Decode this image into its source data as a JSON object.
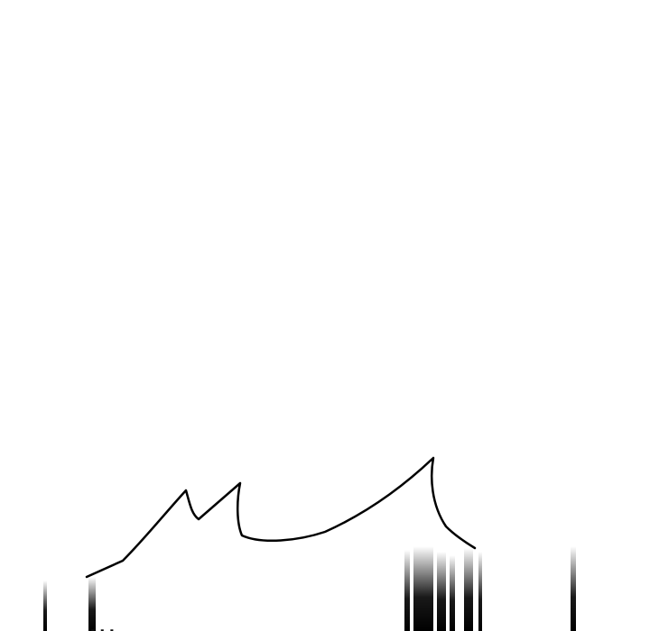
{
  "caption": {
    "text": "..."
  },
  "colors": {
    "background": "#ffffff",
    "ink": "#000000"
  }
}
